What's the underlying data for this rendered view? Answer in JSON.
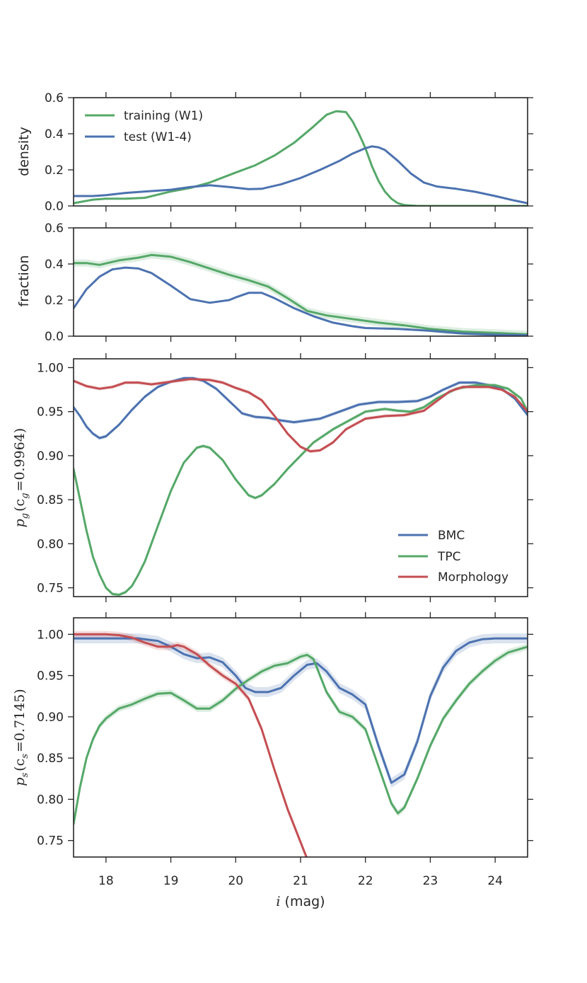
{
  "figure": {
    "xlabel_math": "i",
    "xlabel_unit": " (mag)",
    "xlim": [
      17.5,
      24.5
    ],
    "xticks": [
      18,
      19,
      20,
      21,
      22,
      23,
      24
    ],
    "xtick_labels": [
      "18",
      "19",
      "20",
      "21",
      "22",
      "23",
      "24"
    ]
  },
  "colors": {
    "blue": "#4c72b0",
    "green": "#55a868",
    "red": "#c44e52"
  },
  "chart_data": [
    {
      "id": "density",
      "type": "line",
      "ylabel": "density",
      "ylim": [
        0,
        0.6
      ],
      "yticks": [
        0.0,
        0.2,
        0.4,
        0.6
      ],
      "ytick_labels": [
        "0.0",
        "0.2",
        "0.4",
        "0.6"
      ],
      "legend_position": "top-left",
      "series": [
        {
          "name": "training (W1)",
          "color": "green",
          "x": [
            17.5,
            17.8,
            18.0,
            18.3,
            18.6,
            19.0,
            19.3,
            19.6,
            20.0,
            20.3,
            20.6,
            20.9,
            21.2,
            21.4,
            21.55,
            21.7,
            21.8,
            21.9,
            22.0,
            22.1,
            22.2,
            22.3,
            22.4,
            22.5,
            22.6,
            22.8,
            23.2,
            24.0,
            24.5
          ],
          "y": [
            0.015,
            0.035,
            0.04,
            0.04,
            0.045,
            0.08,
            0.1,
            0.13,
            0.185,
            0.225,
            0.28,
            0.35,
            0.44,
            0.505,
            0.525,
            0.52,
            0.47,
            0.4,
            0.32,
            0.22,
            0.14,
            0.08,
            0.04,
            0.015,
            0.005,
            0.0,
            0.0,
            0.0,
            0.0
          ]
        },
        {
          "name": "test (W1-4)",
          "color": "blue",
          "x": [
            17.5,
            17.8,
            18.0,
            18.3,
            18.6,
            19.0,
            19.3,
            19.6,
            19.9,
            20.2,
            20.4,
            20.7,
            21.0,
            21.3,
            21.6,
            21.8,
            22.0,
            22.1,
            22.2,
            22.3,
            22.5,
            22.7,
            22.9,
            23.1,
            23.4,
            23.7,
            24.0,
            24.3,
            24.5
          ],
          "y": [
            0.055,
            0.055,
            0.06,
            0.072,
            0.08,
            0.09,
            0.105,
            0.115,
            0.105,
            0.093,
            0.095,
            0.12,
            0.155,
            0.2,
            0.25,
            0.29,
            0.32,
            0.33,
            0.325,
            0.31,
            0.25,
            0.18,
            0.13,
            0.108,
            0.095,
            0.078,
            0.055,
            0.03,
            0.015
          ]
        }
      ]
    },
    {
      "id": "fraction",
      "type": "line",
      "ylabel": "fraction",
      "ylim": [
        0,
        0.6
      ],
      "yticks": [
        0.0,
        0.2,
        0.4,
        0.6
      ],
      "ytick_labels": [
        "0.0",
        "0.2",
        "0.4",
        "0.6"
      ],
      "series": [
        {
          "name": "training (W1)",
          "color": "green",
          "band": 0.02,
          "x": [
            17.5,
            17.7,
            17.9,
            18.2,
            18.5,
            18.7,
            19.0,
            19.3,
            19.6,
            19.9,
            20.2,
            20.5,
            20.8,
            21.1,
            21.4,
            21.8,
            22.2,
            22.6,
            23.0,
            23.5,
            24.0,
            24.5
          ],
          "y": [
            0.405,
            0.405,
            0.395,
            0.42,
            0.435,
            0.45,
            0.44,
            0.41,
            0.375,
            0.34,
            0.31,
            0.275,
            0.21,
            0.14,
            0.115,
            0.095,
            0.075,
            0.06,
            0.04,
            0.025,
            0.018,
            0.01
          ]
        },
        {
          "name": "test (W1-4)",
          "color": "blue",
          "x": [
            17.5,
            17.7,
            17.9,
            18.1,
            18.3,
            18.5,
            18.7,
            19.0,
            19.3,
            19.6,
            19.9,
            20.0,
            20.2,
            20.4,
            20.6,
            20.9,
            21.2,
            21.5,
            21.8,
            22.0,
            22.5,
            23.0,
            23.5,
            24.0,
            24.5
          ],
          "y": [
            0.155,
            0.26,
            0.33,
            0.37,
            0.38,
            0.375,
            0.35,
            0.28,
            0.205,
            0.185,
            0.2,
            0.215,
            0.24,
            0.24,
            0.21,
            0.155,
            0.11,
            0.075,
            0.055,
            0.045,
            0.04,
            0.03,
            0.015,
            0.008,
            0.005
          ]
        }
      ]
    },
    {
      "id": "pg",
      "type": "line",
      "ylabel_base": "p",
      "ylabel_sub": "g",
      "ylabel_rest": "(c",
      "ylabel_sub2": "g",
      "ylabel_value": "=0.9964)",
      "ylim": [
        0.74,
        1.01
      ],
      "yticks": [
        0.75,
        0.8,
        0.85,
        0.9,
        0.95,
        1.0
      ],
      "ytick_labels": [
        "0.75",
        "0.80",
        "0.85",
        "0.90",
        "0.95",
        "1.00"
      ],
      "legend_position": "bottom-right",
      "series": [
        {
          "name": "BMC",
          "color": "blue",
          "band": 0.002,
          "x": [
            17.5,
            17.6,
            17.7,
            17.8,
            17.9,
            18.0,
            18.2,
            18.4,
            18.6,
            18.8,
            19.0,
            19.2,
            19.35,
            19.5,
            19.7,
            19.9,
            20.1,
            20.3,
            20.5,
            20.7,
            20.9,
            21.1,
            21.3,
            21.6,
            21.9,
            22.2,
            22.5,
            22.8,
            23.0,
            23.2,
            23.45,
            23.7,
            23.9,
            24.1,
            24.3,
            24.5
          ],
          "y": [
            0.955,
            0.945,
            0.933,
            0.925,
            0.92,
            0.922,
            0.935,
            0.952,
            0.967,
            0.978,
            0.984,
            0.988,
            0.988,
            0.985,
            0.976,
            0.962,
            0.948,
            0.944,
            0.943,
            0.94,
            0.938,
            0.94,
            0.942,
            0.95,
            0.958,
            0.961,
            0.961,
            0.962,
            0.967,
            0.975,
            0.983,
            0.983,
            0.98,
            0.976,
            0.965,
            0.946
          ]
        },
        {
          "name": "TPC",
          "color": "green",
          "band": 0.002,
          "x": [
            17.5,
            17.6,
            17.7,
            17.8,
            17.9,
            18.0,
            18.1,
            18.2,
            18.3,
            18.4,
            18.5,
            18.6,
            18.8,
            19.0,
            19.2,
            19.4,
            19.5,
            19.6,
            19.8,
            20.0,
            20.2,
            20.3,
            20.4,
            20.6,
            20.8,
            21.0,
            21.2,
            21.5,
            21.8,
            22.0,
            22.3,
            22.5,
            22.7,
            22.9,
            23.1,
            23.4,
            23.7,
            24.0,
            24.2,
            24.4,
            24.5
          ],
          "y": [
            0.885,
            0.85,
            0.815,
            0.785,
            0.765,
            0.75,
            0.743,
            0.742,
            0.745,
            0.752,
            0.765,
            0.78,
            0.82,
            0.86,
            0.892,
            0.909,
            0.911,
            0.909,
            0.895,
            0.873,
            0.855,
            0.852,
            0.855,
            0.868,
            0.885,
            0.9,
            0.915,
            0.93,
            0.942,
            0.95,
            0.953,
            0.951,
            0.95,
            0.955,
            0.965,
            0.976,
            0.98,
            0.98,
            0.976,
            0.965,
            0.95
          ]
        },
        {
          "name": "Morphology",
          "color": "red",
          "band": 0.002,
          "x": [
            17.5,
            17.7,
            17.9,
            18.1,
            18.3,
            18.5,
            18.7,
            19.0,
            19.3,
            19.6,
            19.8,
            20.0,
            20.2,
            20.4,
            20.6,
            20.8,
            21.0,
            21.15,
            21.3,
            21.5,
            21.7,
            22.0,
            22.3,
            22.6,
            22.9,
            23.1,
            23.3,
            23.5,
            23.7,
            23.9,
            24.1,
            24.3,
            24.5
          ],
          "y": [
            0.985,
            0.979,
            0.976,
            0.978,
            0.983,
            0.983,
            0.981,
            0.984,
            0.987,
            0.986,
            0.983,
            0.977,
            0.972,
            0.963,
            0.945,
            0.925,
            0.91,
            0.905,
            0.906,
            0.915,
            0.93,
            0.942,
            0.945,
            0.946,
            0.951,
            0.962,
            0.973,
            0.978,
            0.978,
            0.978,
            0.975,
            0.967,
            0.95
          ]
        }
      ]
    },
    {
      "id": "ps",
      "type": "line",
      "ylabel_base": "p",
      "ylabel_sub": "s",
      "ylabel_rest": "(c",
      "ylabel_sub2": "s",
      "ylabel_value": "=0.7145)",
      "ylim": [
        0.73,
        1.02
      ],
      "yticks": [
        0.75,
        0.8,
        0.85,
        0.9,
        0.95,
        1.0
      ],
      "ytick_labels": [
        "0.75",
        "0.80",
        "0.85",
        "0.90",
        "0.95",
        "1.00"
      ],
      "series": [
        {
          "name": "BMC",
          "color": "blue",
          "band": 0.006,
          "x": [
            17.5,
            18.0,
            18.5,
            18.8,
            19.0,
            19.2,
            19.4,
            19.6,
            19.8,
            20.0,
            20.15,
            20.3,
            20.5,
            20.7,
            20.9,
            21.1,
            21.25,
            21.4,
            21.6,
            21.8,
            22.0,
            22.2,
            22.4,
            22.6,
            22.8,
            23.0,
            23.2,
            23.4,
            23.6,
            23.8,
            24.0,
            24.5
          ],
          "y": [
            0.995,
            0.995,
            0.995,
            0.992,
            0.985,
            0.976,
            0.971,
            0.972,
            0.966,
            0.95,
            0.935,
            0.93,
            0.93,
            0.935,
            0.95,
            0.963,
            0.965,
            0.955,
            0.935,
            0.927,
            0.915,
            0.865,
            0.82,
            0.83,
            0.87,
            0.925,
            0.96,
            0.98,
            0.99,
            0.994,
            0.995,
            0.995
          ]
        },
        {
          "name": "TPC",
          "color": "green",
          "band": 0.004,
          "x": [
            17.5,
            17.6,
            17.7,
            17.8,
            17.9,
            18.0,
            18.2,
            18.4,
            18.6,
            18.8,
            19.0,
            19.2,
            19.4,
            19.6,
            19.8,
            20.0,
            20.2,
            20.4,
            20.6,
            20.8,
            21.0,
            21.1,
            21.2,
            21.4,
            21.6,
            21.8,
            22.0,
            22.2,
            22.4,
            22.5,
            22.6,
            22.8,
            23.0,
            23.2,
            23.4,
            23.6,
            23.8,
            24.0,
            24.2,
            24.5
          ],
          "y": [
            0.77,
            0.815,
            0.85,
            0.873,
            0.889,
            0.898,
            0.91,
            0.915,
            0.922,
            0.928,
            0.929,
            0.92,
            0.91,
            0.91,
            0.92,
            0.934,
            0.945,
            0.955,
            0.962,
            0.965,
            0.973,
            0.975,
            0.97,
            0.93,
            0.906,
            0.9,
            0.885,
            0.84,
            0.795,
            0.783,
            0.79,
            0.825,
            0.865,
            0.898,
            0.92,
            0.94,
            0.955,
            0.968,
            0.978,
            0.985
          ]
        },
        {
          "name": "Morphology",
          "color": "red",
          "band": 0.004,
          "x": [
            17.5,
            17.8,
            18.0,
            18.2,
            18.4,
            18.6,
            18.8,
            19.0,
            19.1,
            19.2,
            19.4,
            19.6,
            19.8,
            20.0,
            20.2,
            20.4,
            20.6,
            20.8,
            21.0,
            21.1,
            21.15
          ],
          "y": [
            1.0,
            1.0,
            1.0,
            0.999,
            0.996,
            0.99,
            0.985,
            0.985,
            0.987,
            0.985,
            0.976,
            0.962,
            0.95,
            0.94,
            0.922,
            0.885,
            0.835,
            0.788,
            0.748,
            0.728,
            0.72
          ]
        }
      ]
    }
  ]
}
